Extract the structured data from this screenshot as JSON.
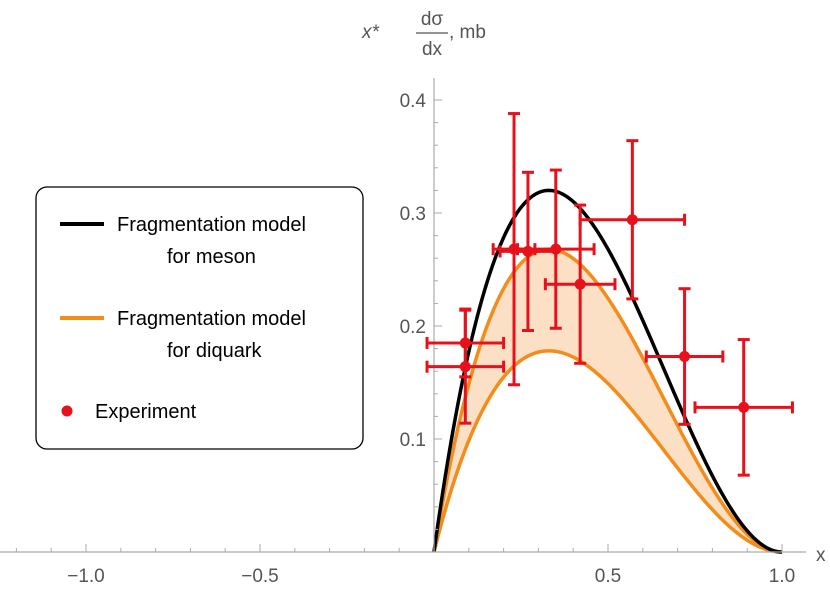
{
  "chart_data": {
    "type": "line",
    "title": "",
    "xlabel": "x",
    "ylabel": {
      "prefix": "x*",
      "numerator": "dσ",
      "denominator": "dx",
      "suffix": ", mb"
    },
    "xlim": [
      -1.22,
      1.1
    ],
    "ylim": [
      0,
      0.41
    ],
    "x_ticks": [
      {
        "value": -1.0,
        "label": "−1.0"
      },
      {
        "value": -0.5,
        "label": "−0.5"
      },
      {
        "value": 0.5,
        "label": "0.5"
      },
      {
        "value": 1.0,
        "label": "1.0"
      }
    ],
    "y_ticks": [
      {
        "value": 0.1,
        "label": "0.1"
      },
      {
        "value": 0.2,
        "label": "0.2"
      },
      {
        "value": 0.3,
        "label": "0.3"
      },
      {
        "value": 0.4,
        "label": "0.4"
      }
    ],
    "grid": false,
    "legend_position": "left",
    "series": [
      {
        "name": "Fragmentation model for meson",
        "legend_lines": [
          "Fragmentation model",
          "for meson"
        ],
        "kind": "curve",
        "color": "#000000",
        "peak_x": 0.33,
        "peak_y": 0.32
      },
      {
        "name": "Fragmentation model for diquark",
        "legend_lines": [
          "Fragmentation model",
          "for diquark"
        ],
        "kind": "band",
        "color": "#f28c1b",
        "fill": "#fbe0c6",
        "upper": {
          "peak_x": 0.33,
          "peak_y": 0.268
        },
        "lower": {
          "peak_x": 0.33,
          "peak_y": 0.178
        }
      },
      {
        "name": "Experiment",
        "legend_lines": [
          "Experiment"
        ],
        "kind": "points",
        "color": "#e8101b",
        "points": [
          {
            "x": 0.09,
            "y": 0.185,
            "xerr": 0.11,
            "yerr": 0.03
          },
          {
            "x": 0.09,
            "y": 0.164,
            "xerr": 0.11,
            "yerr": 0.05
          },
          {
            "x": 0.23,
            "y": 0.268,
            "xerr": 0.06,
            "yerr": 0.12
          },
          {
            "x": 0.27,
            "y": 0.266,
            "xerr": 0.08,
            "yerr": 0.07
          },
          {
            "x": 0.35,
            "y": 0.268,
            "xerr": 0.11,
            "yerr": 0.07
          },
          {
            "x": 0.42,
            "y": 0.237,
            "xerr": 0.1,
            "yerr": 0.07
          },
          {
            "x": 0.57,
            "y": 0.294,
            "xerr": 0.15,
            "yerr": 0.07
          },
          {
            "x": 0.72,
            "y": 0.173,
            "xerr": 0.11,
            "yerr": 0.06
          },
          {
            "x": 0.89,
            "y": 0.128,
            "xerr": 0.14,
            "yerr": 0.06
          }
        ]
      }
    ]
  }
}
